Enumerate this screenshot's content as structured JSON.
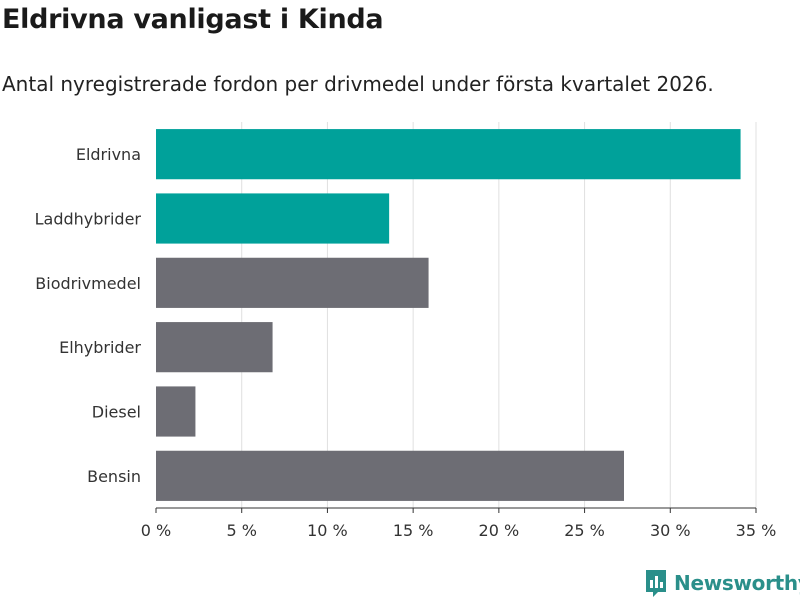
{
  "header": {
    "title": "Eldrivna vanligast i Kinda",
    "subtitle": "Antal nyregistrerade fordon per drivmedel under första kvartalet 2026."
  },
  "brand": {
    "name": "Newsworthy",
    "icon": "newsworthy-chart-icon",
    "color": "#2a8f8a"
  },
  "chart_data": {
    "type": "bar",
    "orientation": "horizontal",
    "title": "Eldrivna vanligast i Kinda",
    "subtitle": "Antal nyregistrerade fordon per drivmedel under första kvartalet 2026.",
    "xlabel": "",
    "ylabel": "",
    "xlim": [
      0,
      35
    ],
    "xticks": [
      0,
      5,
      10,
      15,
      20,
      25,
      30,
      35
    ],
    "tick_labels": [
      "0 %",
      "5 %",
      "10 %",
      "15 %",
      "20 %",
      "25 %",
      "30 %",
      "35 %"
    ],
    "grid": true,
    "categories": [
      "Eldrivna",
      "Laddhybrider",
      "Biodrivmedel",
      "Elhybrider",
      "Diesel",
      "Bensin"
    ],
    "values": [
      34.1,
      13.6,
      15.9,
      6.8,
      2.3,
      27.3
    ],
    "colors": [
      "#00a19a",
      "#00a19a",
      "#6d6d74",
      "#6d6d74",
      "#6d6d74",
      "#6d6d74"
    ]
  }
}
